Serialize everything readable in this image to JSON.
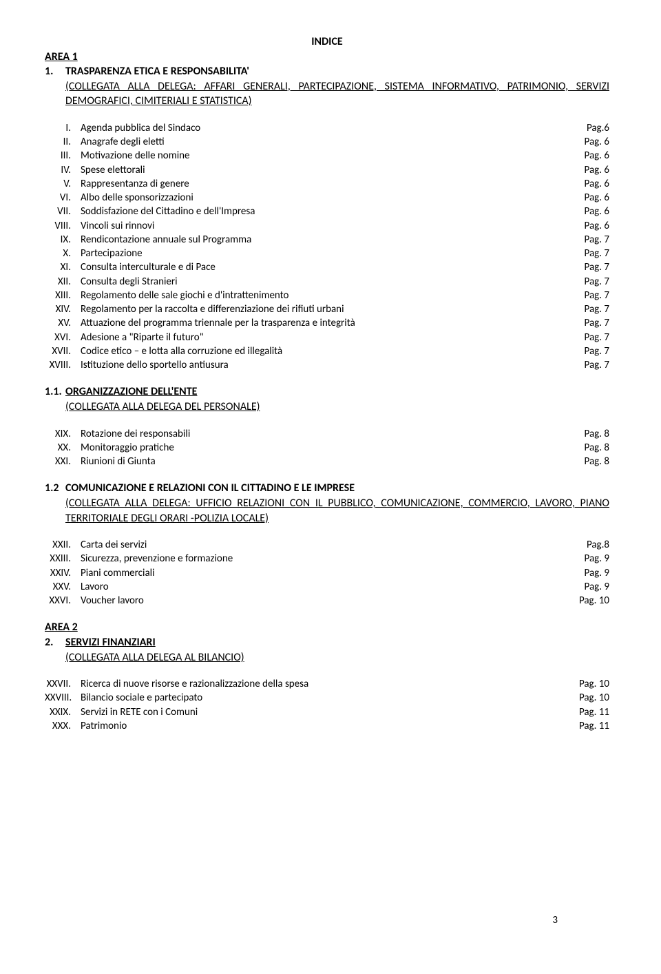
{
  "indice_title": "INDICE",
  "area1": {
    "heading": "AREA 1",
    "section_num": "1.",
    "section_title": "TRASPARENZA ETICA E RESPONSABILITA'",
    "subtitle": "(COLLEGATA ALLA DELEGA: AFFARI GENERALI, PARTECIPAZIONE, SISTEMA INFORMATIVO, PATRIMONIO, SERVIZI DEMOGRAFICI, CIMITERIALI E STATISTICA)",
    "items": [
      {
        "num": "I.",
        "label": "Agenda pubblica del Sindaco",
        "page": "Pag.6"
      },
      {
        "num": "II.",
        "label": "Anagrafe degli eletti",
        "page": "Pag. 6"
      },
      {
        "num": "III.",
        "label": "Motivazione delle nomine",
        "page": "Pag. 6"
      },
      {
        "num": "IV.",
        "label": "Spese elettorali",
        "page": "Pag. 6"
      },
      {
        "num": "V.",
        "label": "Rappresentanza di genere",
        "page": "Pag. 6"
      },
      {
        "num": "VI.",
        "label": "Albo delle sponsorizzazioni",
        "page": "Pag. 6"
      },
      {
        "num": "VII.",
        "label": "Soddisfazione del Cittadino e dell'Impresa",
        "page": "Pag. 6"
      },
      {
        "num": "VIII.",
        "label": "Vincoli sui rinnovi",
        "page": "Pag. 6"
      },
      {
        "num": "IX.",
        "label": "Rendicontazione annuale sul Programma",
        "page": "Pag. 7"
      },
      {
        "num": "X.",
        "label": "Partecipazione",
        "page": "Pag. 7"
      },
      {
        "num": "XI.",
        "label": "Consulta interculturale e di Pace",
        "page": "Pag. 7"
      },
      {
        "num": "XII.",
        "label": "Consulta degli Stranieri",
        "page": "Pag. 7"
      },
      {
        "num": "XIII.",
        "label": "Regolamento delle sale giochi e d'intrattenimento",
        "page": "Pag. 7"
      },
      {
        "num": "XIV.",
        "label": "Regolamento per la raccolta e differenziazione dei rifiuti urbani",
        "page": "Pag. 7"
      },
      {
        "num": "XV.",
        "label": "Attuazione del programma triennale per la trasparenza e integrità",
        "page": "Pag. 7"
      },
      {
        "num": "XVI.",
        "label": "Adesione a \"Riparte il futuro\"",
        "page": "Pag. 7"
      },
      {
        "num": "XVII.",
        "label": "Codice etico – e lotta alla corruzione ed illegalità",
        "page": "Pag. 7"
      },
      {
        "num": "XVIII.",
        "label": "Istituzione dello sportello antiusura",
        "page": "Pag. 7"
      }
    ]
  },
  "section11": {
    "num": "1.1.",
    "title": "ORGANIZZAZIONE DELL'ENTE",
    "subtitle": "(COLLEGATA ALLA DELEGA DEL PERSONALE)",
    "items": [
      {
        "num": "XIX.",
        "label": "Rotazione dei responsabili",
        "page": "Pag. 8"
      },
      {
        "num": "XX.",
        "label": "Monitoraggio pratiche",
        "page": "Pag. 8"
      },
      {
        "num": "XXI.",
        "label": "Riunioni di Giunta",
        "page": "Pag. 8"
      }
    ]
  },
  "section12": {
    "num": "1.2",
    "title": "COMUNICAZIONE E RELAZIONI CON IL CITTADINO E LE IMPRESE",
    "subtitle": "(COLLEGATA ALLA DELEGA: UFFICIO RELAZIONI CON IL PUBBLICO, COMUNICAZIONE, COMMERCIO, LAVORO, PIANO TERRITORIALE DEGLI ORARI -POLIZIA LOCALE)",
    "items": [
      {
        "num": "XXII.",
        "label": "Carta dei servizi",
        "page": "Pag.8"
      },
      {
        "num": "XXIII.",
        "label": "Sicurezza, prevenzione e formazione",
        "page": "Pag. 9"
      },
      {
        "num": "XXIV.",
        "label": "Piani commerciali",
        "page": "Pag. 9"
      },
      {
        "num": "XXV.",
        "label": "Lavoro",
        "page": "Pag. 9"
      },
      {
        "num": "XXVI.",
        "label": "Voucher lavoro",
        "page": "Pag. 10"
      }
    ]
  },
  "area2": {
    "heading": "AREA 2",
    "section_num": "2.",
    "section_title": "SERVIZI FINANZIARI",
    "subtitle": "(COLLEGATA ALLA DELEGA AL BILANCIO)",
    "items": [
      {
        "num": "XXVII.",
        "label": "Ricerca di nuove risorse e razionalizzazione della spesa",
        "page": "Pag. 10"
      },
      {
        "num": "XXVIII.",
        "label": "Bilancio sociale e partecipato",
        "page": "Pag. 10"
      },
      {
        "num": "XXIX.",
        "label": "Servizi in RETE con i Comuni",
        "page": "Pag. 11"
      },
      {
        "num": "XXX.",
        "label": "Patrimonio",
        "page": "Pag. 11"
      }
    ]
  },
  "page_number": "3"
}
